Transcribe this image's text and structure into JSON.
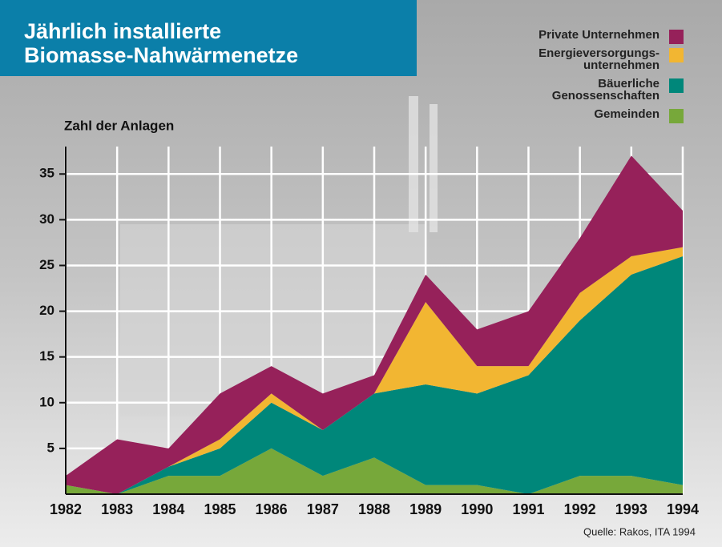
{
  "chart_data": {
    "type": "stacked_area",
    "title": "Jährlich installierte\nBiomasse-Nahwärmenetze",
    "y_label": "Zahl der Anlagen",
    "source": "Quelle: Rakos, ITA 1994",
    "categories": [
      "1982",
      "1983",
      "1984",
      "1985",
      "1986",
      "1987",
      "1988",
      "1989",
      "1990",
      "1991",
      "1992",
      "1993",
      "1994"
    ],
    "series": [
      {
        "name": "Gemeinden",
        "color": "#77a83a",
        "values": [
          1,
          0,
          2,
          2,
          5,
          2,
          4,
          1,
          1,
          0,
          2,
          2,
          1
        ]
      },
      {
        "name": "Bäuerliche\nGenossenschaften",
        "color": "#00877a",
        "values": [
          0,
          0,
          1,
          3,
          5,
          5,
          7,
          11,
          10,
          13,
          17,
          22,
          25
        ]
      },
      {
        "name": "Energieversorgungs-\nunternehmen",
        "color": "#f2b632",
        "values": [
          0,
          0,
          0,
          1,
          1,
          0,
          0,
          9,
          3,
          1,
          3,
          2,
          1
        ]
      },
      {
        "name": "Private Unternehmen",
        "color": "#96215a",
        "values": [
          1,
          6,
          2,
          5,
          3,
          4,
          2,
          3,
          4,
          6,
          6,
          11,
          4
        ]
      }
    ],
    "ylim": [
      0,
      38
    ],
    "yticks": [
      5,
      10,
      15,
      20,
      25,
      30,
      35
    ],
    "grid": true
  }
}
